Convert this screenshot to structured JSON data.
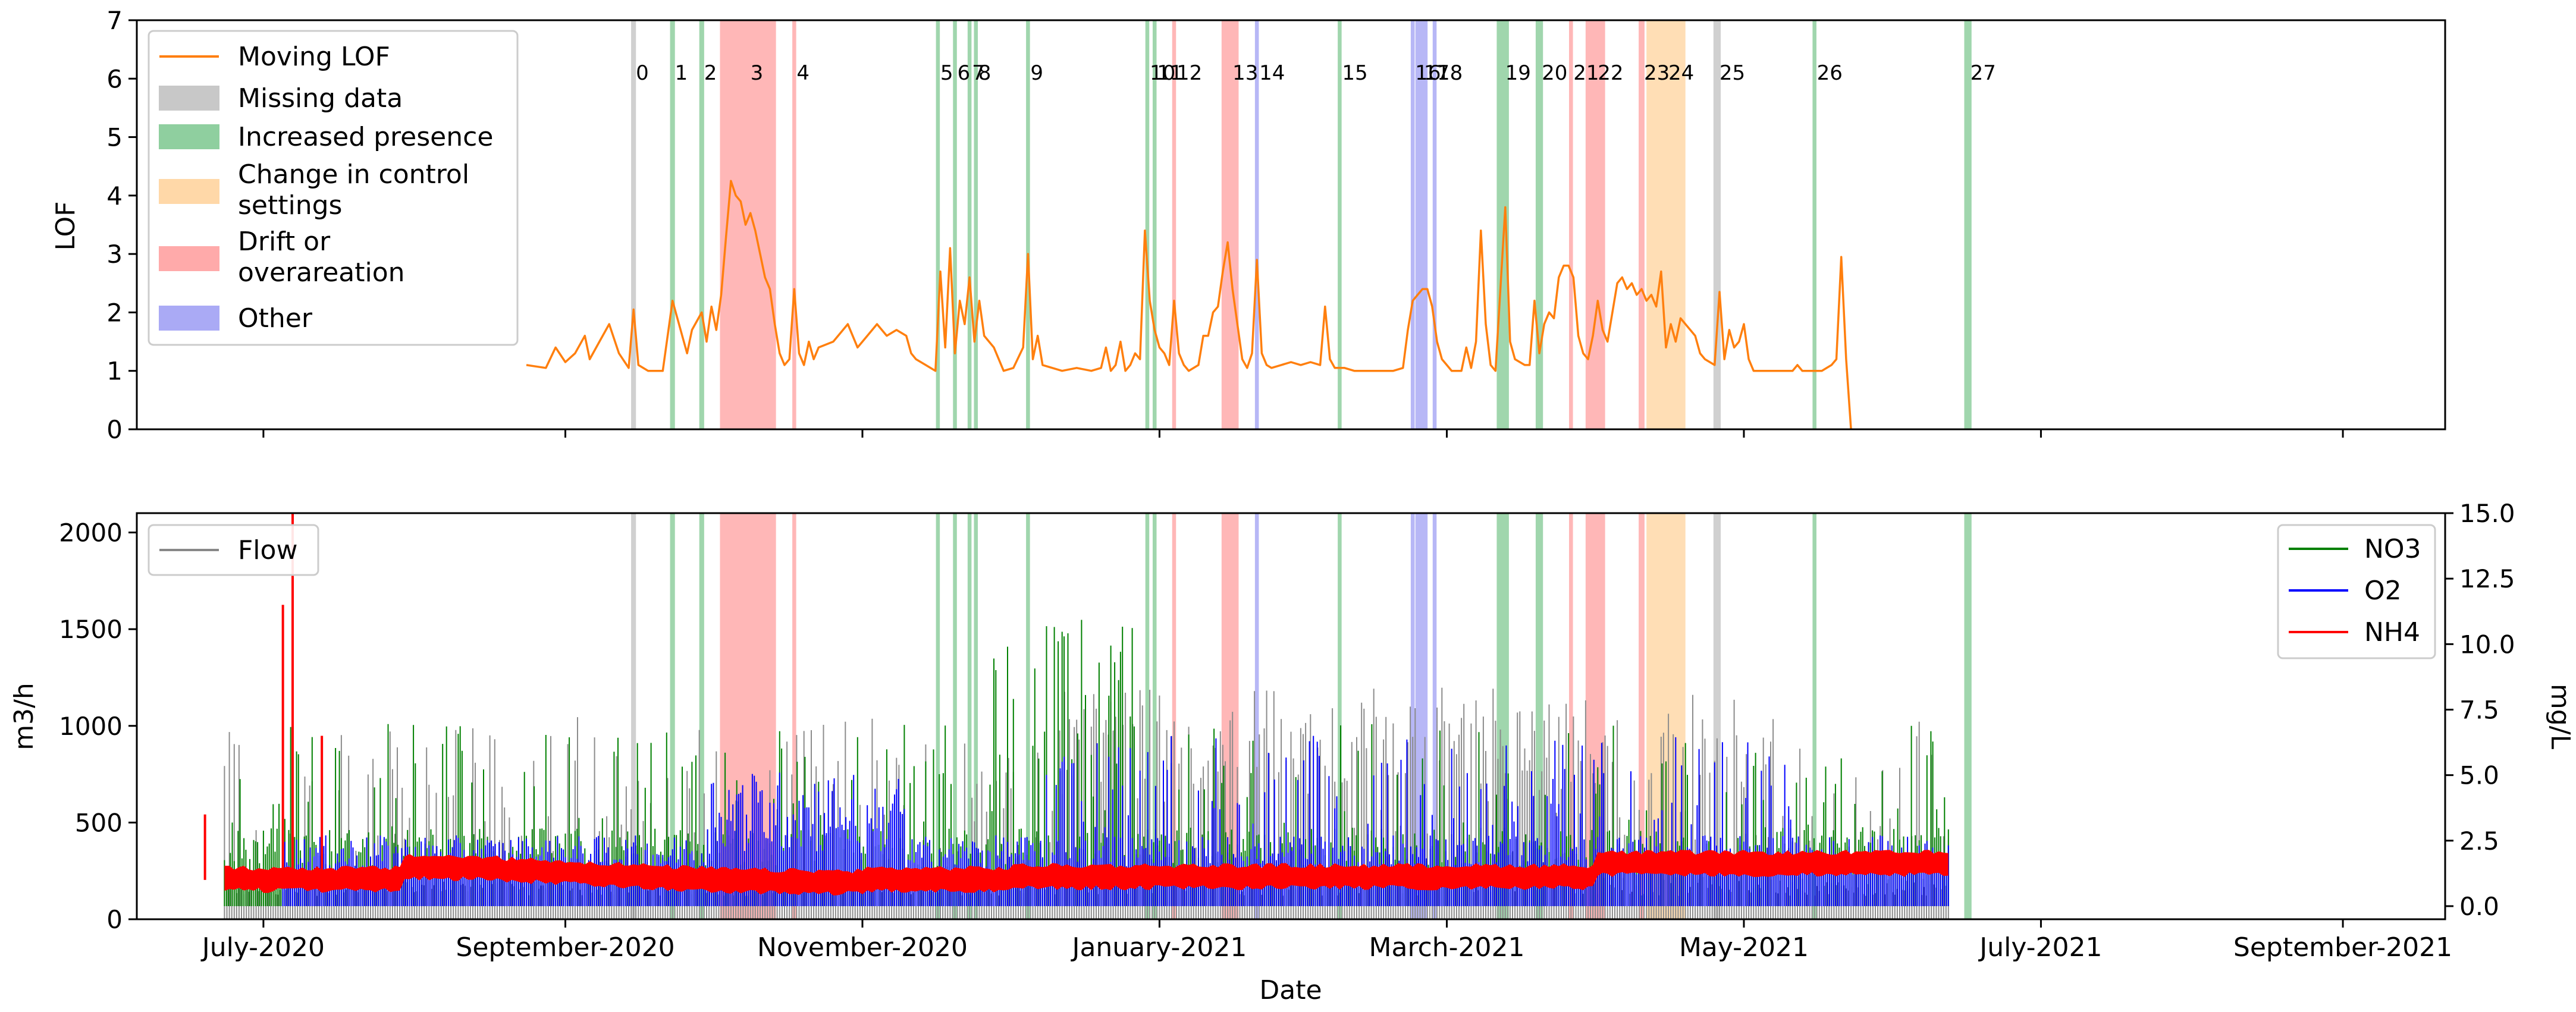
{
  "chart_data": [
    {
      "type": "line",
      "panel": "top",
      "ylabel": "LOF",
      "ylim": [
        0,
        7
      ],
      "yticks": [
        0,
        1,
        2,
        3,
        4,
        5,
        6,
        7
      ],
      "series": [
        {
          "name": "Moving LOF",
          "color": "#ff7f0e"
        }
      ],
      "legend": {
        "placement": "top-left",
        "entries": [
          {
            "label": "Moving LOF",
            "kind": "line",
            "color": "#ff7f0e"
          },
          {
            "label": "Missing data",
            "kind": "patch",
            "color": "#c8c8c8"
          },
          {
            "label": "Increased presence",
            "kind": "patch",
            "color": "#8fcf9f"
          },
          {
            "label": "Change in control settings",
            "kind": "patch",
            "color": "#ffd8a8"
          },
          {
            "label": "Drift or overareation",
            "kind": "patch",
            "color": "#ffaaaa"
          },
          {
            "label": "Other",
            "kind": "patch",
            "color": "#aaaaf5"
          }
        ]
      },
      "lof_points": [
        [
          80,
          1.1
        ],
        [
          84,
          1.05
        ],
        [
          86,
          1.4
        ],
        [
          88,
          1.15
        ],
        [
          90,
          1.3
        ],
        [
          92,
          1.6
        ],
        [
          93,
          1.2
        ],
        [
          95,
          1.5
        ],
        [
          97,
          1.8
        ],
        [
          99,
          1.3
        ],
        [
          101,
          1.05
        ],
        [
          102,
          2.05
        ],
        [
          103,
          1.1
        ],
        [
          105,
          1.0
        ],
        [
          108,
          1.0
        ],
        [
          110,
          2.2
        ],
        [
          112,
          1.6
        ],
        [
          113,
          1.3
        ],
        [
          114,
          1.7
        ],
        [
          116,
          2.0
        ],
        [
          117,
          1.5
        ],
        [
          118,
          2.1
        ],
        [
          119,
          1.7
        ],
        [
          120,
          2.3
        ],
        [
          121,
          3.3
        ],
        [
          122,
          4.25
        ],
        [
          123,
          4.0
        ],
        [
          124,
          3.9
        ],
        [
          125,
          3.5
        ],
        [
          126,
          3.7
        ],
        [
          127,
          3.4
        ],
        [
          128,
          3.0
        ],
        [
          129,
          2.6
        ],
        [
          130,
          2.4
        ],
        [
          131,
          1.8
        ],
        [
          132,
          1.3
        ],
        [
          133,
          1.1
        ],
        [
          134,
          1.2
        ],
        [
          135,
          2.4
        ],
        [
          136,
          1.3
        ],
        [
          137,
          1.1
        ],
        [
          138,
          1.5
        ],
        [
          139,
          1.2
        ],
        [
          140,
          1.4
        ],
        [
          143,
          1.5
        ],
        [
          146,
          1.8
        ],
        [
          148,
          1.4
        ],
        [
          150,
          1.6
        ],
        [
          152,
          1.8
        ],
        [
          154,
          1.6
        ],
        [
          156,
          1.7
        ],
        [
          158,
          1.6
        ],
        [
          159,
          1.3
        ],
        [
          160,
          1.2
        ],
        [
          162,
          1.1
        ],
        [
          164,
          1.0
        ],
        [
          165,
          2.7
        ],
        [
          166,
          1.4
        ],
        [
          167,
          3.1
        ],
        [
          168,
          1.3
        ],
        [
          169,
          2.2
        ],
        [
          170,
          1.8
        ],
        [
          171,
          2.6
        ],
        [
          172,
          1.5
        ],
        [
          173,
          2.2
        ],
        [
          174,
          1.6
        ],
        [
          176,
          1.4
        ],
        [
          178,
          1.0
        ],
        [
          180,
          1.05
        ],
        [
          182,
          1.4
        ],
        [
          183,
          3.0
        ],
        [
          184,
          1.2
        ],
        [
          185,
          1.6
        ],
        [
          186,
          1.1
        ],
        [
          188,
          1.05
        ],
        [
          190,
          1.0
        ],
        [
          193,
          1.05
        ],
        [
          196,
          1.0
        ],
        [
          198,
          1.05
        ],
        [
          199,
          1.4
        ],
        [
          200,
          1.0
        ],
        [
          201,
          1.1
        ],
        [
          202,
          1.5
        ],
        [
          203,
          1.0
        ],
        [
          204,
          1.1
        ],
        [
          205,
          1.3
        ],
        [
          206,
          1.2
        ],
        [
          207,
          3.4
        ],
        [
          208,
          2.2
        ],
        [
          209,
          1.7
        ],
        [
          210,
          1.4
        ],
        [
          211,
          1.3
        ],
        [
          212,
          1.1
        ],
        [
          213,
          2.2
        ],
        [
          214,
          1.3
        ],
        [
          215,
          1.1
        ],
        [
          216,
          1.0
        ],
        [
          218,
          1.1
        ],
        [
          219,
          1.6
        ],
        [
          220,
          1.6
        ],
        [
          221,
          2.0
        ],
        [
          222,
          2.1
        ],
        [
          223,
          2.7
        ],
        [
          224,
          3.2
        ],
        [
          225,
          2.4
        ],
        [
          226,
          1.8
        ],
        [
          227,
          1.2
        ],
        [
          228,
          1.05
        ],
        [
          229,
          1.3
        ],
        [
          230,
          2.9
        ],
        [
          231,
          1.3
        ],
        [
          232,
          1.1
        ],
        [
          233,
          1.05
        ],
        [
          235,
          1.1
        ],
        [
          237,
          1.15
        ],
        [
          239,
          1.1
        ],
        [
          241,
          1.15
        ],
        [
          243,
          1.1
        ],
        [
          244,
          2.1
        ],
        [
          245,
          1.2
        ],
        [
          246,
          1.05
        ],
        [
          248,
          1.05
        ],
        [
          250,
          1.0
        ],
        [
          253,
          1.0
        ],
        [
          256,
          1.0
        ],
        [
          258,
          1.0
        ],
        [
          260,
          1.05
        ],
        [
          261,
          1.7
        ],
        [
          262,
          2.2
        ],
        [
          263,
          2.3
        ],
        [
          264,
          2.4
        ],
        [
          265,
          2.4
        ],
        [
          266,
          2.1
        ],
        [
          267,
          1.5
        ],
        [
          268,
          1.2
        ],
        [
          269,
          1.1
        ],
        [
          270,
          1.0
        ],
        [
          272,
          1.0
        ],
        [
          273,
          1.4
        ],
        [
          274,
          1.05
        ],
        [
          275,
          1.5
        ],
        [
          276,
          3.4
        ],
        [
          277,
          1.8
        ],
        [
          278,
          1.1
        ],
        [
          279,
          1.0
        ],
        [
          280,
          2.4
        ],
        [
          281,
          3.8
        ],
        [
          282,
          1.5
        ],
        [
          283,
          1.2
        ],
        [
          284,
          1.15
        ],
        [
          285,
          1.1
        ],
        [
          286,
          1.1
        ],
        [
          287,
          2.2
        ],
        [
          288,
          1.3
        ],
        [
          289,
          1.8
        ],
        [
          290,
          2.0
        ],
        [
          291,
          1.9
        ],
        [
          292,
          2.6
        ],
        [
          293,
          2.8
        ],
        [
          294,
          2.8
        ],
        [
          295,
          2.6
        ],
        [
          296,
          1.6
        ],
        [
          297,
          1.3
        ],
        [
          298,
          1.2
        ],
        [
          299,
          1.6
        ],
        [
          300,
          2.2
        ],
        [
          301,
          1.7
        ],
        [
          302,
          1.5
        ],
        [
          303,
          2.0
        ],
        [
          304,
          2.5
        ],
        [
          305,
          2.6
        ],
        [
          306,
          2.4
        ],
        [
          307,
          2.5
        ],
        [
          308,
          2.3
        ],
        [
          309,
          2.4
        ],
        [
          310,
          2.2
        ],
        [
          311,
          2.3
        ],
        [
          312,
          2.1
        ],
        [
          313,
          2.7
        ],
        [
          314,
          1.4
        ],
        [
          315,
          1.8
        ],
        [
          316,
          1.5
        ],
        [
          317,
          1.9
        ],
        [
          318,
          1.8
        ],
        [
          319,
          1.7
        ],
        [
          320,
          1.6
        ],
        [
          321,
          1.3
        ],
        [
          322,
          1.2
        ],
        [
          324,
          1.1
        ],
        [
          325,
          2.35
        ],
        [
          326,
          1.2
        ],
        [
          327,
          1.7
        ],
        [
          328,
          1.4
        ],
        [
          329,
          1.5
        ],
        [
          330,
          1.8
        ],
        [
          331,
          1.2
        ],
        [
          332,
          1.0
        ],
        [
          334,
          1.0
        ],
        [
          336,
          1.0
        ],
        [
          338,
          1.0
        ],
        [
          340,
          1.0
        ],
        [
          341,
          1.1
        ],
        [
          342,
          1.0
        ],
        [
          344,
          1.0
        ],
        [
          346,
          1.0
        ],
        [
          347,
          1.05
        ],
        [
          348,
          1.1
        ],
        [
          349,
          1.2
        ],
        [
          350,
          2.95
        ],
        [
          351,
          1.2
        ],
        [
          352,
          0.0
        ]
      ]
    },
    {
      "type": "area",
      "panel": "bottom",
      "xlabel": "Date",
      "ylabel": "m3/h",
      "ylim": [
        0,
        2100
      ],
      "yticks": [
        0,
        500,
        1000,
        1500,
        2000
      ],
      "y2label": "mg/L",
      "y2lim": [
        -0.5,
        15.0
      ],
      "y2ticks": [
        "0.0",
        "2.5",
        "5.0",
        "7.5",
        "10.0",
        "12.5",
        "15.0"
      ],
      "series": [
        {
          "name": "Flow",
          "color": "#888888"
        },
        {
          "name": "NO3",
          "color": "#008000"
        },
        {
          "name": "O2",
          "color": "#0000ff"
        },
        {
          "name": "NH4",
          "color": "#ff0000"
        }
      ],
      "legend_left": {
        "placement": "top-left",
        "entries": [
          {
            "label": "Flow",
            "color": "#888888"
          }
        ]
      },
      "legend_right": {
        "placement": "top-right",
        "entries": [
          {
            "label": "NO3",
            "color": "#008000"
          },
          {
            "label": "O2",
            "color": "#0000ff"
          },
          {
            "label": "NH4",
            "color": "#ff0000"
          }
        ]
      }
    }
  ],
  "x_axis": {
    "label": "Date",
    "range_days": [
      0,
      474
    ],
    "ticks": [
      {
        "label": "July-2020",
        "day": 26
      },
      {
        "label": "September-2020",
        "day": 88
      },
      {
        "label": "November-2020",
        "day": 149
      },
      {
        "label": "January-2021",
        "day": 210
      },
      {
        "label": "March-2021",
        "day": 269
      },
      {
        "label": "May-2021",
        "day": 330
      },
      {
        "label": "July-2021",
        "day": 391
      },
      {
        "label": "September-2021",
        "day": 453
      }
    ]
  },
  "events": [
    {
      "label": "0",
      "day": 102,
      "width": 1.0,
      "cat": "missing"
    },
    {
      "label": "1",
      "day": 110,
      "width": 1.0,
      "cat": "increased"
    },
    {
      "label": "2",
      "day": 116,
      "width": 1.0,
      "cat": "increased"
    },
    {
      "label": "3",
      "day": 125.5,
      "width": 11.5,
      "cat": "drift"
    },
    {
      "label": "4",
      "day": 135,
      "width": 0.8,
      "cat": "drift"
    },
    {
      "label": "5",
      "day": 164.5,
      "width": 0.8,
      "cat": "increased"
    },
    {
      "label": "6",
      "day": 168,
      "width": 0.8,
      "cat": "increased"
    },
    {
      "label": "7",
      "day": 171,
      "width": 0.8,
      "cat": "increased"
    },
    {
      "label": "8",
      "day": 172.3,
      "width": 0.8,
      "cat": "increased"
    },
    {
      "label": "9",
      "day": 183,
      "width": 0.8,
      "cat": "increased"
    },
    {
      "label": "10",
      "day": 207.5,
      "width": 0.8,
      "cat": "increased"
    },
    {
      "label": "11",
      "day": 209,
      "width": 0.8,
      "cat": "increased"
    },
    {
      "label": "12",
      "day": 213,
      "width": 0.8,
      "cat": "drift"
    },
    {
      "label": "13",
      "day": 224.5,
      "width": 3.5,
      "cat": "drift"
    },
    {
      "label": "14",
      "day": 230,
      "width": 0.8,
      "cat": "other"
    },
    {
      "label": "15",
      "day": 247,
      "width": 0.8,
      "cat": "increased"
    },
    {
      "label": "16",
      "day": 262,
      "width": 0.8,
      "cat": "other"
    },
    {
      "label": "17",
      "day": 263.8,
      "width": 2.5,
      "cat": "other"
    },
    {
      "label": "18",
      "day": 266.5,
      "width": 0.8,
      "cat": "other"
    },
    {
      "label": "19",
      "day": 280.5,
      "width": 2.5,
      "cat": "increased"
    },
    {
      "label": "20",
      "day": 288,
      "width": 1.5,
      "cat": "increased"
    },
    {
      "label": "21",
      "day": 294.5,
      "width": 0.8,
      "cat": "drift"
    },
    {
      "label": "22",
      "day": 299.5,
      "width": 4.0,
      "cat": "drift"
    },
    {
      "label": "23",
      "day": 309,
      "width": 1.2,
      "cat": "drift"
    },
    {
      "label": "24",
      "day": 314,
      "width": 8.0,
      "cat": "control"
    },
    {
      "label": "25",
      "day": 324.5,
      "width": 1.5,
      "cat": "missing"
    },
    {
      "label": "26",
      "day": 344.5,
      "width": 0.8,
      "cat": "increased"
    },
    {
      "label": "27",
      "day": 376,
      "width": 1.5,
      "cat": "increased"
    }
  ],
  "category_colors": {
    "missing": "#c8c8c8",
    "increased": "#8fcf9f",
    "control": "#ffd8a8",
    "drift": "#ffaaaa",
    "other": "#aaaaf5"
  }
}
